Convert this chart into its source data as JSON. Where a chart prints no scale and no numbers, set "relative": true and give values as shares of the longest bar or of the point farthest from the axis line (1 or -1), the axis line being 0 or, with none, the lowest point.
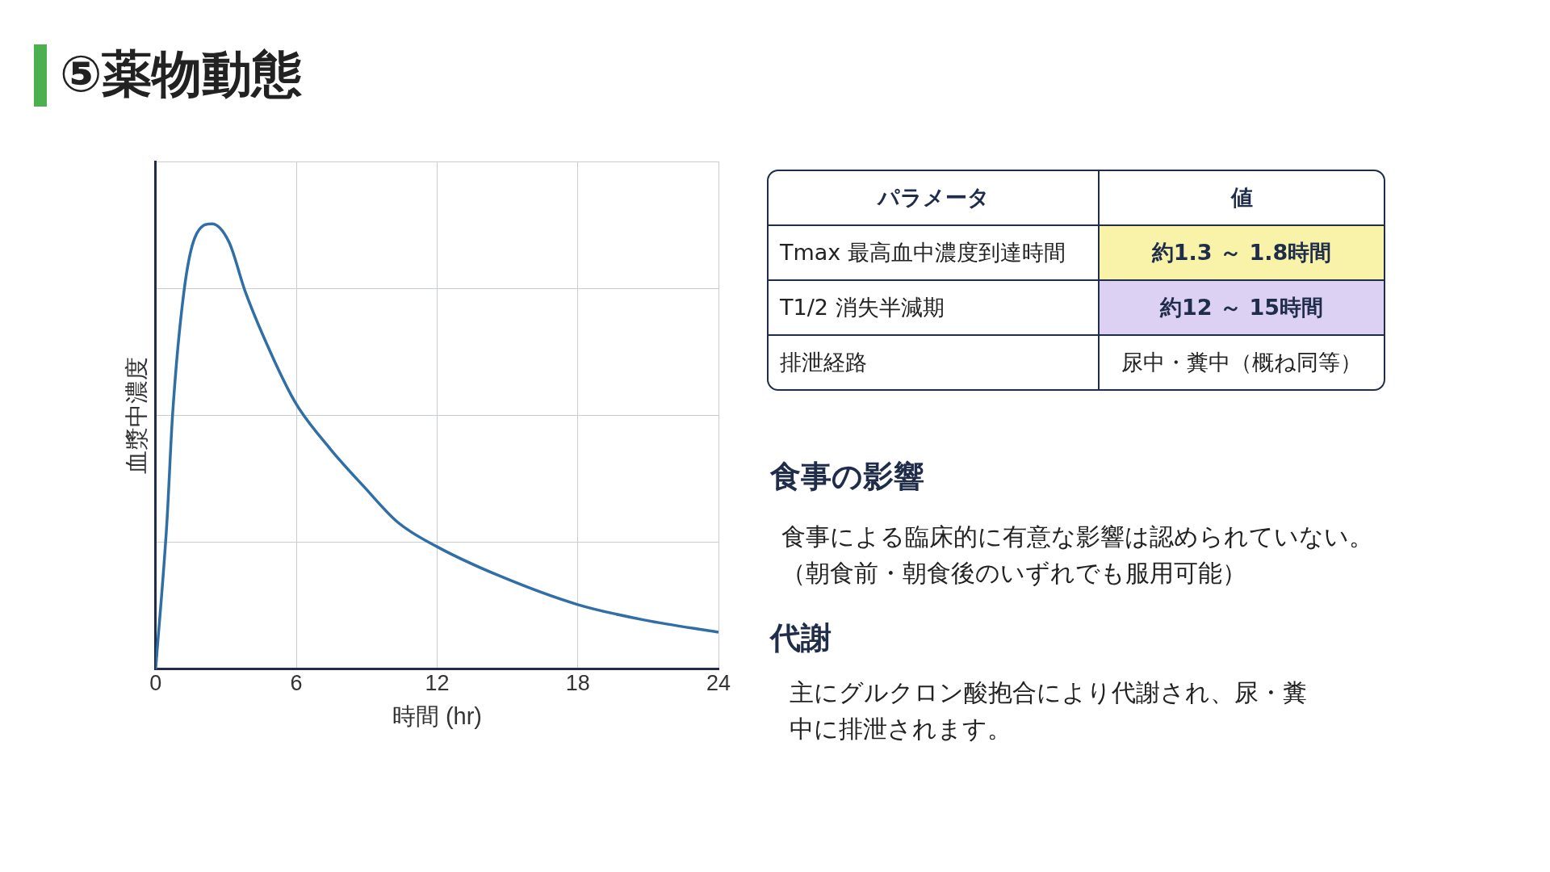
{
  "chart_data": [
    {
      "type": "line",
      "title": "⑤薬物動態",
      "xlabel": "時間 (hr)",
      "ylabel": "血漿中濃度",
      "relative": true,
      "xlim": [
        0,
        24
      ],
      "xticks": [
        0,
        6,
        12,
        18,
        24
      ],
      "grid": true,
      "marker": "none",
      "legend": false,
      "series": [
        {
          "color": "#2f6fa5",
          "x": [
            0,
            0.48,
            0.72,
            1.2,
            1.68,
            2.4,
            3.12,
            3.84,
            5.04,
            6,
            7.44,
            8.88,
            10.32,
            12,
            14.64,
            18,
            20.88,
            24
          ],
          "values": [
            0,
            0.33,
            0.57,
            0.845,
            0.97,
            1,
            0.96,
            0.845,
            0.695,
            0.595,
            0.495,
            0.41,
            0.33,
            0.275,
            0.21,
            0.145,
            0.11,
            0.083
          ]
        }
      ]
    },
    {
      "type": "other",
      "annotations": [
        "パラメータ",
        "値",
        "Tmax 最高血中濃度到達時間",
        "約1.3 ～ 1.8時間",
        "T1/2 消失半減期",
        "約12 ～ 15時間",
        "排泄経路",
        "尿中・糞中（概ね同等）",
        "食事の影響",
        "食事による臨床的に有意な影響は認められていない。",
        "（朝食前・朝食後のいずれでも服用可能）",
        "代謝",
        "主にグルクロン酸抱合により代謝され、尿・糞",
        "中に排泄されます。"
      ]
    }
  ]
}
